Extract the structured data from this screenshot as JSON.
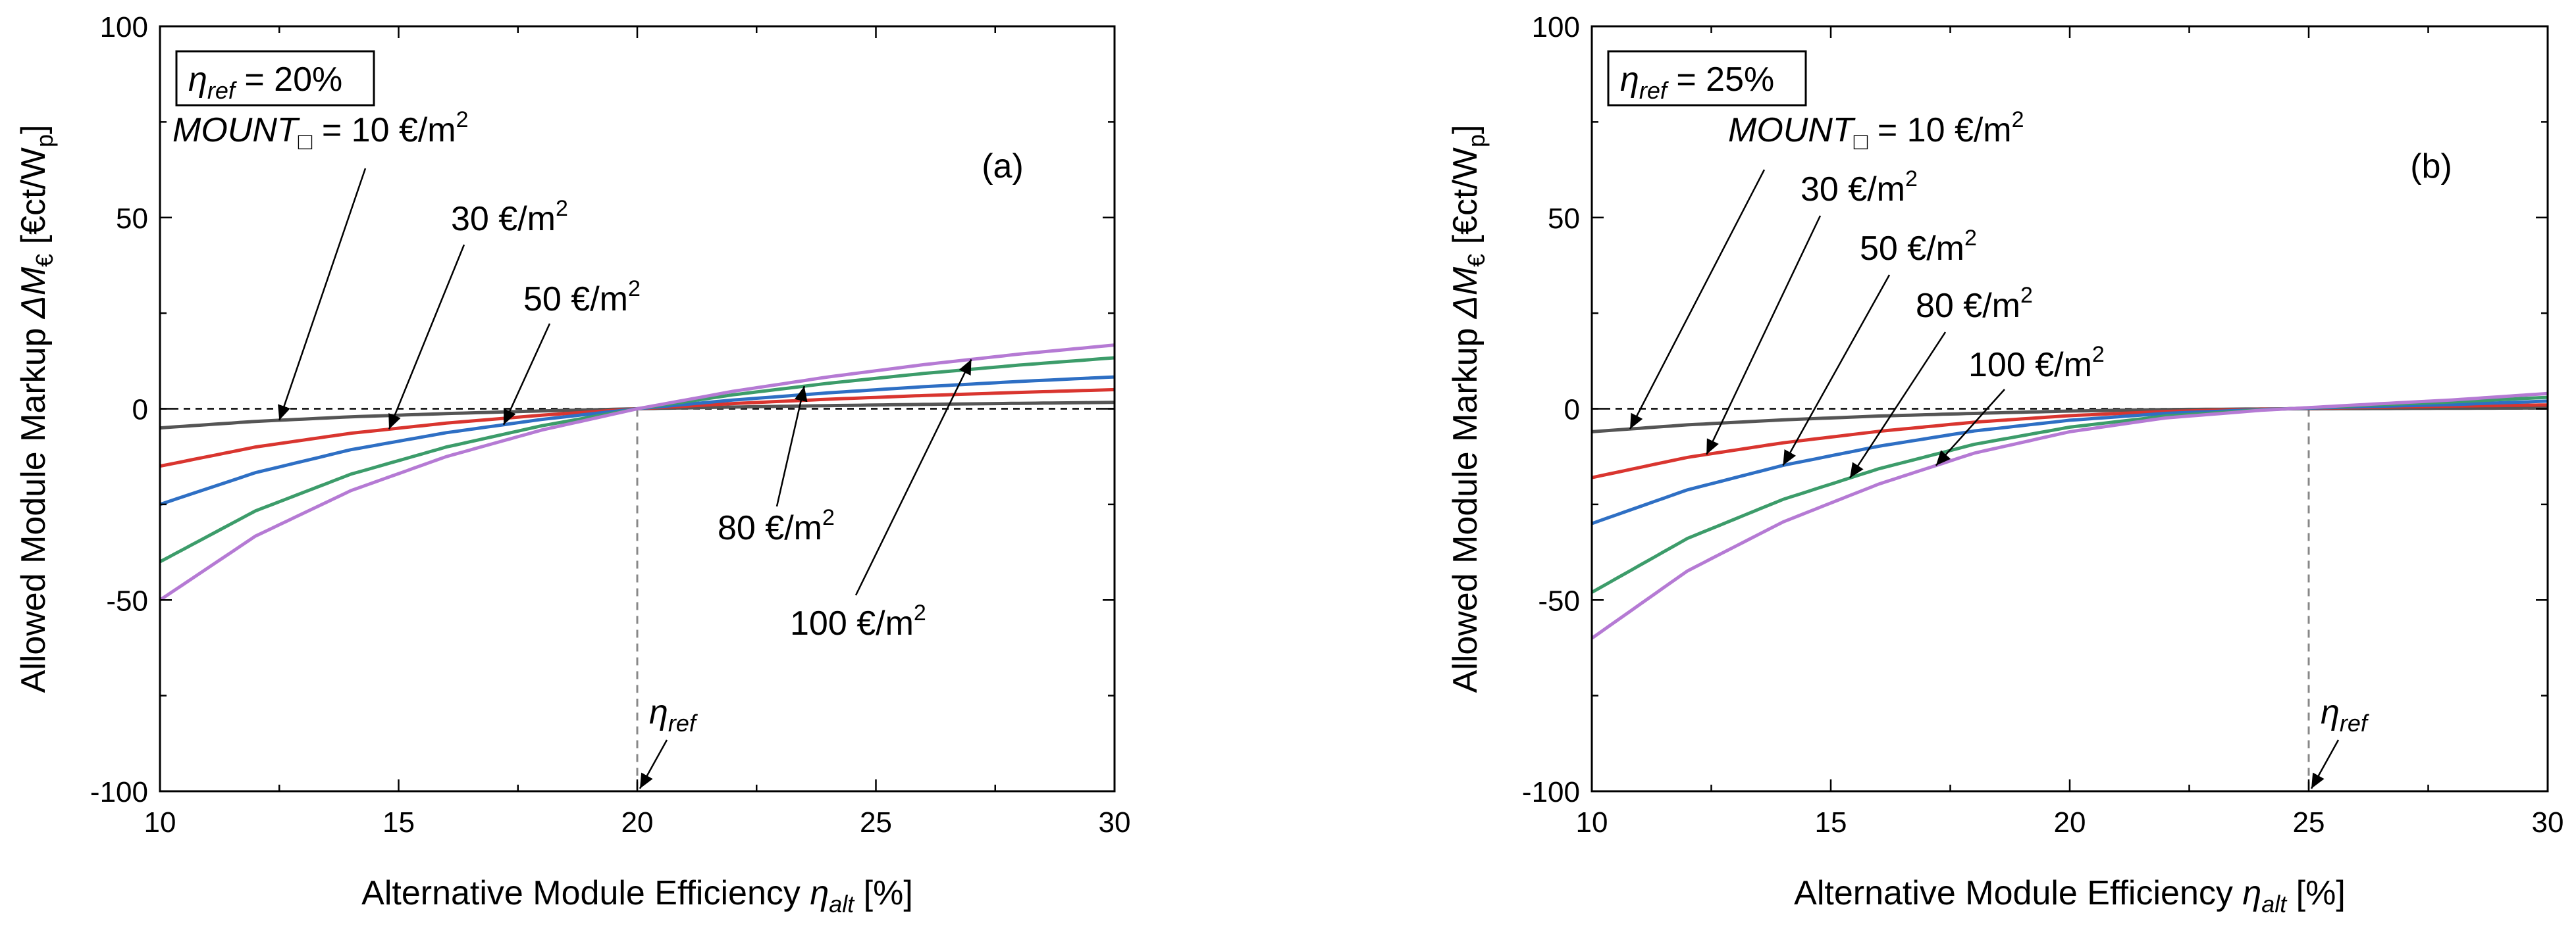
{
  "chart_data": [
    {
      "type": "line",
      "panel_tag": "(a)",
      "eta_ref": 20,
      "eta_ref_box": {
        "symbol": "η",
        "sub": "ref",
        "text": " = 20%"
      },
      "xlabel": {
        "text": "Alternative Module Efficiency ",
        "symbol": "η",
        "sub": "alt",
        "unit": " [%]"
      },
      "ylabel": {
        "text": "Allowed Module Markup ",
        "symbol": "ΔM",
        "sub": "€",
        "unit_pre": " [€ct/W",
        "unit_sub": "p",
        "unit_post": "]"
      },
      "xlim": [
        10,
        30
      ],
      "ylim": [
        -100,
        100
      ],
      "xticks": [
        "10",
        "15",
        "20",
        "25",
        "30"
      ],
      "yticks": [
        "-100",
        "-50",
        "0",
        "50",
        "100"
      ],
      "reference_line_label": {
        "symbol": "η",
        "sub": "ref"
      },
      "series_annotations": [
        {
          "mount_prefix": "MOUNT",
          "mount_sub": "□",
          "text": " = 10 €/m",
          "sup": "2"
        },
        {
          "text": "30 €/m",
          "sup": "2"
        },
        {
          "text": "50 €/m",
          "sup": "2"
        },
        {
          "text": "80 €/m",
          "sup": "2"
        },
        {
          "text": "100 €/m",
          "sup": "2"
        }
      ],
      "series": [
        {
          "color": "#555555",
          "x": [
            10,
            12,
            14,
            16,
            18,
            20,
            22,
            24,
            26,
            28,
            30
          ],
          "y": [
            -5.0,
            -3.3,
            -2.1,
            -1.25,
            -0.56,
            0,
            0.45,
            0.83,
            1.15,
            1.43,
            1.67
          ]
        },
        {
          "color": "#d9352f",
          "x": [
            10,
            12,
            14,
            16,
            18,
            20,
            22,
            24,
            26,
            28,
            30
          ],
          "y": [
            -15.0,
            -10.0,
            -6.4,
            -3.75,
            -1.67,
            0,
            1.36,
            2.5,
            3.46,
            4.29,
            5.0
          ]
        },
        {
          "color": "#2e6fc4",
          "x": [
            10,
            12,
            14,
            16,
            18,
            20,
            22,
            24,
            26,
            28,
            30
          ],
          "y": [
            -25.0,
            -16.7,
            -10.7,
            -6.25,
            -2.78,
            0,
            2.27,
            4.17,
            5.77,
            7.14,
            8.33
          ]
        },
        {
          "color": "#3c9c6a",
          "x": [
            10,
            12,
            14,
            16,
            18,
            20,
            22,
            24,
            26,
            28,
            30
          ],
          "y": [
            -40.0,
            -26.7,
            -17.1,
            -10.0,
            -4.44,
            0,
            3.64,
            6.67,
            9.23,
            11.43,
            13.33
          ]
        },
        {
          "color": "#b57ad4",
          "x": [
            10,
            12,
            14,
            16,
            18,
            20,
            22,
            24,
            26,
            28,
            30
          ],
          "y": [
            -50.0,
            -33.3,
            -21.4,
            -12.5,
            -5.56,
            0,
            4.55,
            8.33,
            11.54,
            14.29,
            16.67
          ]
        }
      ]
    },
    {
      "type": "line",
      "panel_tag": "(b)",
      "eta_ref": 25,
      "eta_ref_box": {
        "symbol": "η",
        "sub": "ref",
        "text": " = 25%"
      },
      "xlabel": {
        "text": "Alternative Module Efficiency ",
        "symbol": "η",
        "sub": "alt",
        "unit": " [%]"
      },
      "ylabel": {
        "text": "Allowed Module Markup ",
        "symbol": "ΔM",
        "sub": "€",
        "unit_pre": " [€ct/W",
        "unit_sub": "p",
        "unit_post": "]"
      },
      "xlim": [
        10,
        30
      ],
      "ylim": [
        -100,
        100
      ],
      "xticks": [
        "10",
        "15",
        "20",
        "25",
        "30"
      ],
      "yticks": [
        "-100",
        "-50",
        "0",
        "50",
        "100"
      ],
      "reference_line_label": {
        "symbol": "η",
        "sub": "ref"
      },
      "series_annotations": [
        {
          "mount_prefix": "MOUNT",
          "mount_sub": "□",
          "text": " = 10 €/m",
          "sup": "2"
        },
        {
          "text": "30 €/m",
          "sup": "2"
        },
        {
          "text": "50 €/m",
          "sup": "2"
        },
        {
          "text": "80 €/m",
          "sup": "2"
        },
        {
          "text": "100 €/m",
          "sup": "2"
        }
      ],
      "series": [
        {
          "color": "#555555",
          "x": [
            10,
            12,
            14,
            16,
            18,
            20,
            22,
            24,
            26,
            28,
            30
          ],
          "y": [
            -6.0,
            -4.2,
            -2.9,
            -1.9,
            -1.2,
            -0.6,
            -0.2,
            -0.05,
            0.05,
            0.13,
            0.2
          ]
        },
        {
          "color": "#d9352f",
          "x": [
            10,
            12,
            14,
            16,
            18,
            20,
            22,
            24,
            26,
            28,
            30
          ],
          "y": [
            -18.0,
            -12.7,
            -8.9,
            -5.9,
            -3.5,
            -1.8,
            -0.7,
            -0.1,
            0.3,
            0.7,
            1.0
          ]
        },
        {
          "color": "#2e6fc4",
          "x": [
            10,
            12,
            14,
            16,
            18,
            20,
            22,
            24,
            26,
            28,
            30
          ],
          "y": [
            -30.0,
            -21.2,
            -14.8,
            -9.8,
            -5.8,
            -3.0,
            -1.2,
            -0.2,
            0.5,
            1.1,
            2.0
          ]
        },
        {
          "color": "#3c9c6a",
          "x": [
            10,
            12,
            14,
            16,
            18,
            20,
            22,
            24,
            26,
            28,
            30
          ],
          "y": [
            -48.0,
            -33.9,
            -23.7,
            -15.7,
            -9.3,
            -4.8,
            -1.9,
            -0.3,
            0.8,
            1.8,
            3.0
          ]
        },
        {
          "color": "#b57ad4",
          "x": [
            10,
            12,
            14,
            16,
            18,
            20,
            22,
            24,
            26,
            28,
            30
          ],
          "y": [
            -60.0,
            -42.4,
            -29.6,
            -19.7,
            -11.6,
            -6.0,
            -2.4,
            -0.4,
            1.0,
            2.3,
            4.0
          ]
        }
      ]
    }
  ]
}
